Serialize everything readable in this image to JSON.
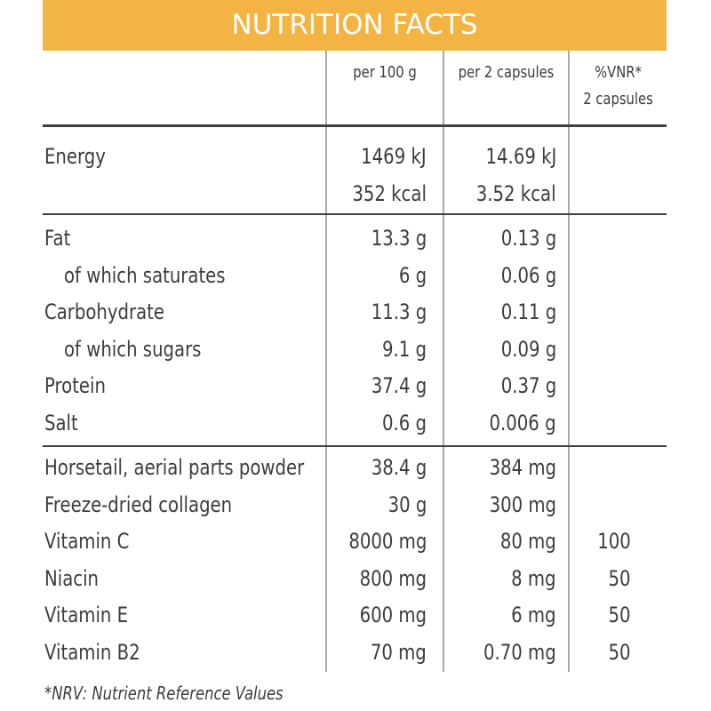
{
  "header": {
    "title": "NUTRITION FACTS"
  },
  "columns": {
    "per100": "per 100 g",
    "per2": "per 2 capsules",
    "nrv_line1": "%VNR*",
    "nrv_line2": "2 capsules"
  },
  "energy": [
    {
      "label": "Energy",
      "per100": "1469 kJ",
      "per2": "14.69 kJ",
      "nrv": ""
    },
    {
      "label": "",
      "per100": "352 kcal",
      "per2": "3.52 kcal",
      "nrv": ""
    }
  ],
  "macros": [
    {
      "label": "Fat",
      "per100": "13.3 g",
      "per2": "0.13 g",
      "nrv": "",
      "indent": false
    },
    {
      "label": "of which saturates",
      "per100": "6 g",
      "per2": "0.06 g",
      "nrv": "",
      "indent": true
    },
    {
      "label": "Carbohydrate",
      "per100": "11.3 g",
      "per2": "0.11 g",
      "nrv": "",
      "indent": false
    },
    {
      "label": "of which sugars",
      "per100": "9.1 g",
      "per2": "0.09 g",
      "nrv": "",
      "indent": true
    },
    {
      "label": "Protein",
      "per100": "37.4 g",
      "per2": "0.37 g",
      "nrv": "",
      "indent": false
    },
    {
      "label": "Salt",
      "per100": "0.6 g",
      "per2": "0.006 g",
      "nrv": "",
      "indent": false
    }
  ],
  "ingredients": [
    {
      "label": "Horsetail, aerial parts powder",
      "per100": "38.4 g",
      "per2": "384 mg",
      "nrv": ""
    },
    {
      "label": "Freeze-dried collagen",
      "per100": "30 g",
      "per2": "300 mg",
      "nrv": ""
    },
    {
      "label": "Vitamin C",
      "per100": "8000 mg",
      "per2": "80 mg",
      "nrv": "100"
    },
    {
      "label": "Niacin",
      "per100": "800 mg",
      "per2": "8 mg",
      "nrv": "50"
    },
    {
      "label": "Vitamin E",
      "per100": "600 mg",
      "per2": "6 mg",
      "nrv": "50"
    },
    {
      "label": "Vitamin B2",
      "per100": "70 mg",
      "per2": "0.70 mg",
      "nrv": "50"
    }
  ],
  "footnote": "*NRV: Nutrient Reference Values",
  "colors": {
    "header_bg": "#f3b443",
    "header_text": "#ffffff",
    "text": "#3d3d3d"
  }
}
